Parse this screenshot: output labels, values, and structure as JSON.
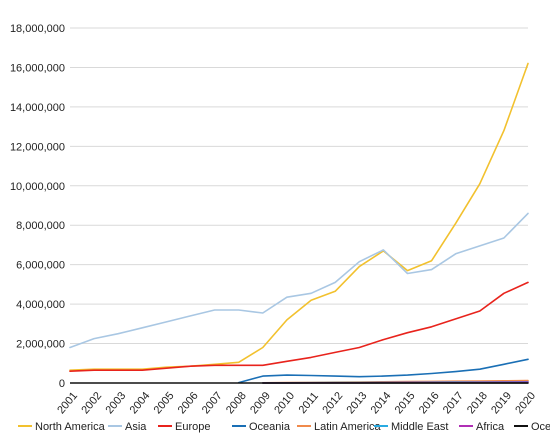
{
  "chart_data": {
    "type": "line",
    "title": "",
    "xlabel": "",
    "ylabel": "",
    "x": [
      "2001",
      "2002",
      "2003",
      "2004",
      "2005",
      "2006",
      "2007",
      "2008",
      "2009",
      "2010",
      "2011",
      "2012",
      "2013",
      "2014",
      "2015",
      "2016",
      "2017",
      "2018",
      "2019",
      "2020"
    ],
    "ylim": [
      0,
      18000000
    ],
    "yticks": [
      0,
      2000000,
      4000000,
      6000000,
      8000000,
      10000000,
      12000000,
      14000000,
      16000000,
      18000000
    ],
    "ytick_labels": [
      "0",
      "2,000,000",
      "4,000,000",
      "6,000,000",
      "8,000,000",
      "10,000,000",
      "12,000,000",
      "14,000,000",
      "16,000,000",
      "18,000,000"
    ],
    "grid": true,
    "legend_position": "bottom",
    "series": [
      {
        "name": "North America",
        "color": "#f2c12e",
        "values": [
          650000,
          700000,
          700000,
          700000,
          800000,
          850000,
          950000,
          1050000,
          1800000,
          3200000,
          4200000,
          4650000,
          5900000,
          6700000,
          5700000,
          6200000,
          8100000,
          10100000,
          12800000,
          16200000
        ]
      },
      {
        "name": "Asia",
        "color": "#a9c7e3",
        "values": [
          1800000,
          2250000,
          2500000,
          2800000,
          3100000,
          3400000,
          3700000,
          3700000,
          3550000,
          4350000,
          4550000,
          5100000,
          6150000,
          6750000,
          5550000,
          5750000,
          6550000,
          6950000,
          7350000,
          8600000
        ]
      },
      {
        "name": "Europe",
        "color": "#e8231c",
        "values": [
          600000,
          650000,
          650000,
          650000,
          750000,
          850000,
          900000,
          900000,
          900000,
          1100000,
          1300000,
          1550000,
          1800000,
          2200000,
          2550000,
          2850000,
          3250000,
          3650000,
          4550000,
          5100000
        ]
      },
      {
        "name": "Oceania",
        "color": "#1a6fb5",
        "values": [
          null,
          null,
          null,
          null,
          null,
          null,
          null,
          20000,
          350000,
          400000,
          380000,
          350000,
          320000,
          350000,
          400000,
          480000,
          580000,
          700000,
          950000,
          1200000
        ]
      },
      {
        "name": "Latin America",
        "color": "#f08a4b",
        "values": [
          null,
          null,
          null,
          null,
          null,
          null,
          null,
          null,
          10000,
          20000,
          30000,
          40000,
          50000,
          60000,
          70000,
          80000,
          90000,
          100000,
          110000,
          120000
        ]
      },
      {
        "name": "Middle East",
        "color": "#29abe2",
        "values": [
          null,
          null,
          null,
          null,
          null,
          null,
          null,
          null,
          5000,
          10000,
          15000,
          20000,
          25000,
          30000,
          35000,
          40000,
          45000,
          50000,
          55000,
          60000
        ]
      },
      {
        "name": "Africa",
        "color": "#b02fb5",
        "values": [
          null,
          null,
          null,
          null,
          null,
          null,
          null,
          null,
          3000,
          5000,
          8000,
          10000,
          12000,
          15000,
          18000,
          20000,
          25000,
          30000,
          35000,
          40000
        ]
      },
      {
        "name": "Oceania",
        "color": "#111111",
        "values": [
          null,
          null,
          null,
          null,
          null,
          null,
          null,
          null,
          0,
          0,
          0,
          0,
          0,
          0,
          0,
          0,
          0,
          0,
          0,
          0
        ]
      }
    ]
  }
}
